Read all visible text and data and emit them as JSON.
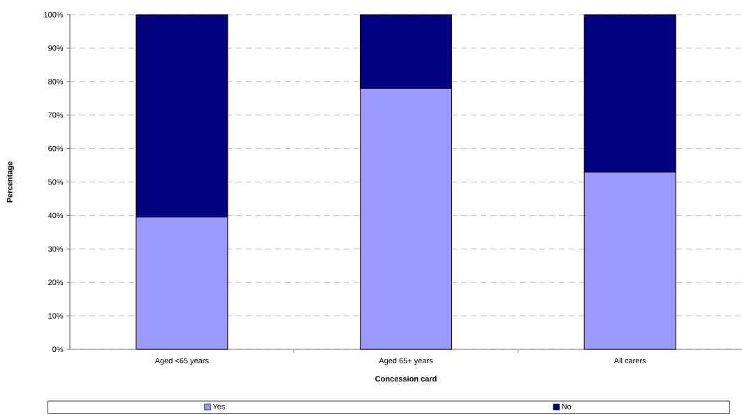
{
  "chart_data": {
    "type": "bar",
    "stacked": true,
    "xlabel": "Concession card",
    "ylabel": "Percentage",
    "categories": [
      "Aged <65 years",
      "Aged 65+ years",
      "All carers"
    ],
    "series": [
      {
        "name": "Yes",
        "color": "#9999ff",
        "values": [
          39.5,
          78,
          53
        ]
      },
      {
        "name": "No",
        "color": "#000080",
        "values": [
          60.5,
          22,
          47
        ]
      }
    ],
    "ylim": [
      0,
      100
    ],
    "yticks": [
      {
        "value": 0,
        "label": "0%"
      },
      {
        "value": 10,
        "label": "10%"
      },
      {
        "value": 20,
        "label": "20%"
      },
      {
        "value": 30,
        "label": "30%"
      },
      {
        "value": 40,
        "label": "40%"
      },
      {
        "value": 50,
        "label": "50%"
      },
      {
        "value": 60,
        "label": "60%"
      },
      {
        "value": 70,
        "label": "70%"
      },
      {
        "value": 80,
        "label": "80%"
      },
      {
        "value": 90,
        "label": "90%"
      },
      {
        "value": 100,
        "label": "100%"
      }
    ],
    "grid": "y",
    "legend": "bottom"
  }
}
